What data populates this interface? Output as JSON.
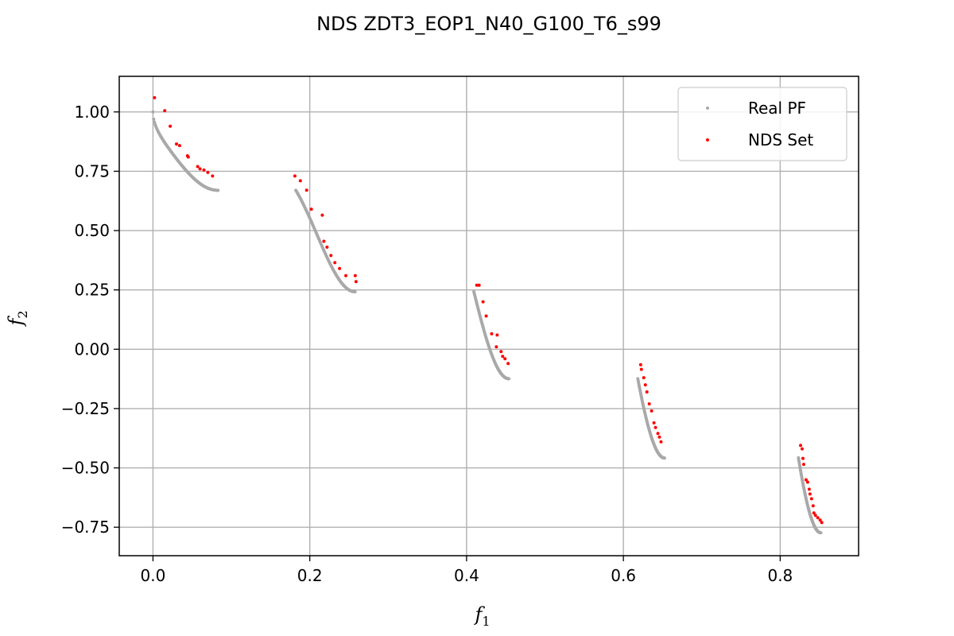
{
  "chart_data": {
    "type": "scatter",
    "title": "NDS ZDT3_EOP1_N40_G100_T6_s99",
    "xlabel": "f",
    "xlabel_sub": "1",
    "ylabel": "f",
    "ylabel_sub": "2",
    "xlim": [
      -0.043,
      0.9
    ],
    "ylim": [
      -0.87,
      1.15
    ],
    "xticks": [
      0.0,
      0.2,
      0.4,
      0.6,
      0.8
    ],
    "xtick_labels": [
      "0.0",
      "0.2",
      "0.4",
      "0.6",
      "0.8"
    ],
    "yticks": [
      -0.75,
      -0.5,
      -0.25,
      0.0,
      0.25,
      0.5,
      0.75,
      1.0
    ],
    "ytick_labels": [
      "−0.75",
      "−0.50",
      "−0.25",
      "0.00",
      "0.25",
      "0.50",
      "0.75",
      "1.00"
    ],
    "grid": true,
    "legend_position": "top-right",
    "series": [
      {
        "name": "Real PF",
        "color": "#a9a9a9",
        "segments": [
          [
            0.0,
            0.083
          ],
          [
            0.1822,
            0.2578
          ],
          [
            0.4093,
            0.4539
          ],
          [
            0.6184,
            0.6525
          ],
          [
            0.8233,
            0.8518
          ]
        ]
      },
      {
        "name": "NDS Set",
        "color": "#ff0000",
        "points": [
          [
            0.002,
            1.06
          ],
          [
            0.015,
            1.005
          ],
          [
            0.022,
            0.94
          ],
          [
            0.03,
            0.865
          ],
          [
            0.034,
            0.858
          ],
          [
            0.044,
            0.815
          ],
          [
            0.045,
            0.81
          ],
          [
            0.057,
            0.77
          ],
          [
            0.06,
            0.76
          ],
          [
            0.065,
            0.755
          ],
          [
            0.07,
            0.745
          ],
          [
            0.076,
            0.73
          ],
          [
            0.181,
            0.73
          ],
          [
            0.188,
            0.71
          ],
          [
            0.196,
            0.67
          ],
          [
            0.202,
            0.59
          ],
          [
            0.216,
            0.565
          ],
          [
            0.218,
            0.455
          ],
          [
            0.222,
            0.43
          ],
          [
            0.227,
            0.395
          ],
          [
            0.232,
            0.365
          ],
          [
            0.238,
            0.34
          ],
          [
            0.246,
            0.31
          ],
          [
            0.258,
            0.31
          ],
          [
            0.259,
            0.285
          ],
          [
            0.413,
            0.27
          ],
          [
            0.416,
            0.27
          ],
          [
            0.421,
            0.2
          ],
          [
            0.425,
            0.14
          ],
          [
            0.432,
            0.065
          ],
          [
            0.439,
            0.06
          ],
          [
            0.438,
            0.01
          ],
          [
            0.444,
            -0.01
          ],
          [
            0.446,
            -0.03
          ],
          [
            0.449,
            -0.04
          ],
          [
            0.453,
            -0.06
          ],
          [
            0.622,
            -0.065
          ],
          [
            0.623,
            -0.085
          ],
          [
            0.626,
            -0.12
          ],
          [
            0.628,
            -0.15
          ],
          [
            0.63,
            -0.18
          ],
          [
            0.633,
            -0.23
          ],
          [
            0.636,
            -0.26
          ],
          [
            0.639,
            -0.31
          ],
          [
            0.641,
            -0.33
          ],
          [
            0.644,
            -0.355
          ],
          [
            0.646,
            -0.37
          ],
          [
            0.648,
            -0.39
          ],
          [
            0.826,
            -0.405
          ],
          [
            0.828,
            -0.42
          ],
          [
            0.829,
            -0.46
          ],
          [
            0.83,
            -0.485
          ],
          [
            0.833,
            -0.55
          ],
          [
            0.835,
            -0.56
          ],
          [
            0.837,
            -0.59
          ],
          [
            0.838,
            -0.61
          ],
          [
            0.84,
            -0.63
          ],
          [
            0.842,
            -0.66
          ],
          [
            0.843,
            -0.69
          ],
          [
            0.845,
            -0.7
          ],
          [
            0.848,
            -0.71
          ],
          [
            0.851,
            -0.72
          ],
          [
            0.853,
            -0.73
          ]
        ]
      }
    ]
  }
}
